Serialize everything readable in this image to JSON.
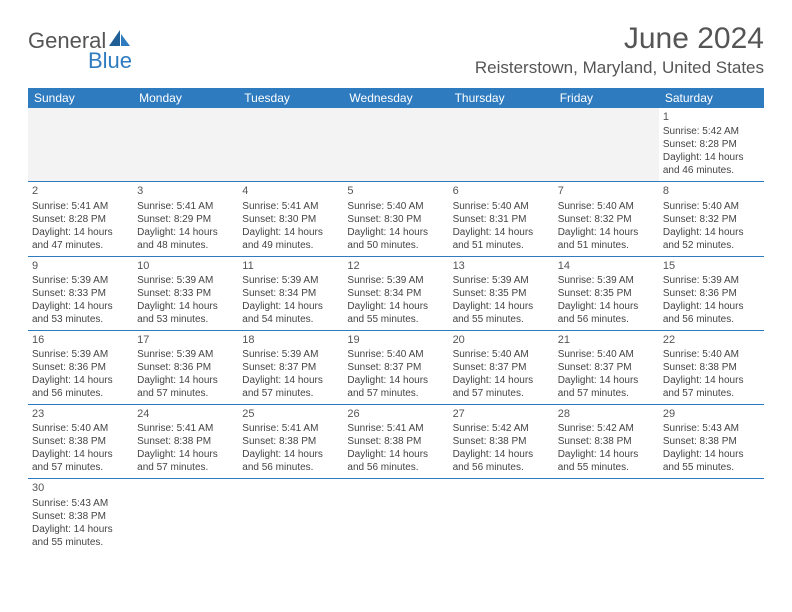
{
  "logo": {
    "part1": "General",
    "part2": "Blue"
  },
  "title": "June 2024",
  "location": "Reisterstown, Maryland, United States",
  "colors": {
    "header_bg": "#2f7bbf",
    "header_text": "#ffffff",
    "border": "#2f7bbf",
    "blank_bg": "#f3f3f3",
    "text": "#444444",
    "logo_gray": "#555555",
    "logo_blue": "#2f7bbf"
  },
  "day_headers": [
    "Sunday",
    "Monday",
    "Tuesday",
    "Wednesday",
    "Thursday",
    "Friday",
    "Saturday"
  ],
  "weeks": [
    [
      null,
      null,
      null,
      null,
      null,
      null,
      {
        "n": "1",
        "sr": "Sunrise: 5:42 AM",
        "ss": "Sunset: 8:28 PM",
        "d1": "Daylight: 14 hours",
        "d2": "and 46 minutes."
      }
    ],
    [
      {
        "n": "2",
        "sr": "Sunrise: 5:41 AM",
        "ss": "Sunset: 8:28 PM",
        "d1": "Daylight: 14 hours",
        "d2": "and 47 minutes."
      },
      {
        "n": "3",
        "sr": "Sunrise: 5:41 AM",
        "ss": "Sunset: 8:29 PM",
        "d1": "Daylight: 14 hours",
        "d2": "and 48 minutes."
      },
      {
        "n": "4",
        "sr": "Sunrise: 5:41 AM",
        "ss": "Sunset: 8:30 PM",
        "d1": "Daylight: 14 hours",
        "d2": "and 49 minutes."
      },
      {
        "n": "5",
        "sr": "Sunrise: 5:40 AM",
        "ss": "Sunset: 8:30 PM",
        "d1": "Daylight: 14 hours",
        "d2": "and 50 minutes."
      },
      {
        "n": "6",
        "sr": "Sunrise: 5:40 AM",
        "ss": "Sunset: 8:31 PM",
        "d1": "Daylight: 14 hours",
        "d2": "and 51 minutes."
      },
      {
        "n": "7",
        "sr": "Sunrise: 5:40 AM",
        "ss": "Sunset: 8:32 PM",
        "d1": "Daylight: 14 hours",
        "d2": "and 51 minutes."
      },
      {
        "n": "8",
        "sr": "Sunrise: 5:40 AM",
        "ss": "Sunset: 8:32 PM",
        "d1": "Daylight: 14 hours",
        "d2": "and 52 minutes."
      }
    ],
    [
      {
        "n": "9",
        "sr": "Sunrise: 5:39 AM",
        "ss": "Sunset: 8:33 PM",
        "d1": "Daylight: 14 hours",
        "d2": "and 53 minutes."
      },
      {
        "n": "10",
        "sr": "Sunrise: 5:39 AM",
        "ss": "Sunset: 8:33 PM",
        "d1": "Daylight: 14 hours",
        "d2": "and 53 minutes."
      },
      {
        "n": "11",
        "sr": "Sunrise: 5:39 AM",
        "ss": "Sunset: 8:34 PM",
        "d1": "Daylight: 14 hours",
        "d2": "and 54 minutes."
      },
      {
        "n": "12",
        "sr": "Sunrise: 5:39 AM",
        "ss": "Sunset: 8:34 PM",
        "d1": "Daylight: 14 hours",
        "d2": "and 55 minutes."
      },
      {
        "n": "13",
        "sr": "Sunrise: 5:39 AM",
        "ss": "Sunset: 8:35 PM",
        "d1": "Daylight: 14 hours",
        "d2": "and 55 minutes."
      },
      {
        "n": "14",
        "sr": "Sunrise: 5:39 AM",
        "ss": "Sunset: 8:35 PM",
        "d1": "Daylight: 14 hours",
        "d2": "and 56 minutes."
      },
      {
        "n": "15",
        "sr": "Sunrise: 5:39 AM",
        "ss": "Sunset: 8:36 PM",
        "d1": "Daylight: 14 hours",
        "d2": "and 56 minutes."
      }
    ],
    [
      {
        "n": "16",
        "sr": "Sunrise: 5:39 AM",
        "ss": "Sunset: 8:36 PM",
        "d1": "Daylight: 14 hours",
        "d2": "and 56 minutes."
      },
      {
        "n": "17",
        "sr": "Sunrise: 5:39 AM",
        "ss": "Sunset: 8:36 PM",
        "d1": "Daylight: 14 hours",
        "d2": "and 57 minutes."
      },
      {
        "n": "18",
        "sr": "Sunrise: 5:39 AM",
        "ss": "Sunset: 8:37 PM",
        "d1": "Daylight: 14 hours",
        "d2": "and 57 minutes."
      },
      {
        "n": "19",
        "sr": "Sunrise: 5:40 AM",
        "ss": "Sunset: 8:37 PM",
        "d1": "Daylight: 14 hours",
        "d2": "and 57 minutes."
      },
      {
        "n": "20",
        "sr": "Sunrise: 5:40 AM",
        "ss": "Sunset: 8:37 PM",
        "d1": "Daylight: 14 hours",
        "d2": "and 57 minutes."
      },
      {
        "n": "21",
        "sr": "Sunrise: 5:40 AM",
        "ss": "Sunset: 8:37 PM",
        "d1": "Daylight: 14 hours",
        "d2": "and 57 minutes."
      },
      {
        "n": "22",
        "sr": "Sunrise: 5:40 AM",
        "ss": "Sunset: 8:38 PM",
        "d1": "Daylight: 14 hours",
        "d2": "and 57 minutes."
      }
    ],
    [
      {
        "n": "23",
        "sr": "Sunrise: 5:40 AM",
        "ss": "Sunset: 8:38 PM",
        "d1": "Daylight: 14 hours",
        "d2": "and 57 minutes."
      },
      {
        "n": "24",
        "sr": "Sunrise: 5:41 AM",
        "ss": "Sunset: 8:38 PM",
        "d1": "Daylight: 14 hours",
        "d2": "and 57 minutes."
      },
      {
        "n": "25",
        "sr": "Sunrise: 5:41 AM",
        "ss": "Sunset: 8:38 PM",
        "d1": "Daylight: 14 hours",
        "d2": "and 56 minutes."
      },
      {
        "n": "26",
        "sr": "Sunrise: 5:41 AM",
        "ss": "Sunset: 8:38 PM",
        "d1": "Daylight: 14 hours",
        "d2": "and 56 minutes."
      },
      {
        "n": "27",
        "sr": "Sunrise: 5:42 AM",
        "ss": "Sunset: 8:38 PM",
        "d1": "Daylight: 14 hours",
        "d2": "and 56 minutes."
      },
      {
        "n": "28",
        "sr": "Sunrise: 5:42 AM",
        "ss": "Sunset: 8:38 PM",
        "d1": "Daylight: 14 hours",
        "d2": "and 55 minutes."
      },
      {
        "n": "29",
        "sr": "Sunrise: 5:43 AM",
        "ss": "Sunset: 8:38 PM",
        "d1": "Daylight: 14 hours",
        "d2": "and 55 minutes."
      }
    ],
    [
      {
        "n": "30",
        "sr": "Sunrise: 5:43 AM",
        "ss": "Sunset: 8:38 PM",
        "d1": "Daylight: 14 hours",
        "d2": "and 55 minutes."
      },
      null,
      null,
      null,
      null,
      null,
      null
    ]
  ]
}
